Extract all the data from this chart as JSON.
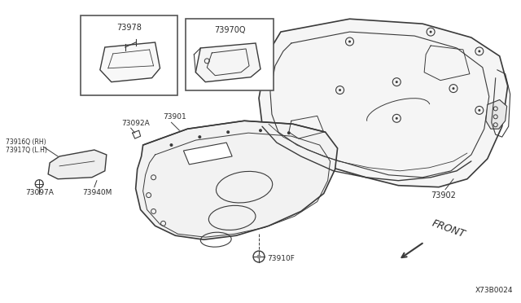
{
  "background_color": "#ffffff",
  "fig_width": 6.4,
  "fig_height": 3.72,
  "dpi": 100,
  "line_color": "#3a3a3a",
  "text_color": "#2a2a2a",
  "box1_label": "73978",
  "box2_label": "73970Q",
  "label_73916": "73916Q (RH)",
  "label_73917": "73917Q (L.H)",
  "label_73092": "73092A",
  "label_73901": "73901",
  "label_73097": "73097A",
  "label_73940": "73940M",
  "label_73902": "73902",
  "label_73910": "73910F",
  "label_code": "X73B0024",
  "label_front": "FRONT"
}
